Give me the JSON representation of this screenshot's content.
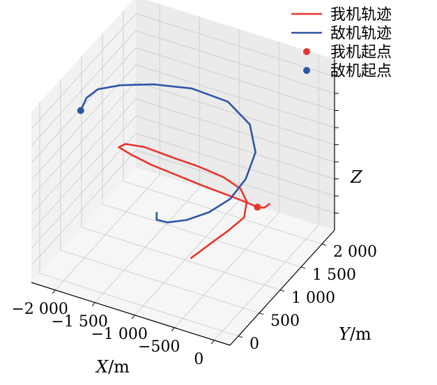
{
  "chart_data": {
    "type": "line",
    "projection": "3d",
    "title": "",
    "xlabel_var": "X",
    "xlabel_unit": "/m",
    "ylabel_var": "Y",
    "ylabel_unit": "/m",
    "zlabel": "Z",
    "x_ticks": [
      "−2 000",
      "−1 500",
      "−1 000",
      "−500",
      "0"
    ],
    "y_ticks": [
      "0",
      "500",
      "1 000",
      "1 500",
      "2 000"
    ],
    "z_ticks": [],
    "xlim": [
      -2300,
      200
    ],
    "ylim": [
      -200,
      2300
    ],
    "zlim": [
      0,
      1
    ],
    "grid": true,
    "legend_position": "top-right",
    "legend": [
      {
        "label": "我机轨迹",
        "kind": "line",
        "color": "#e8352e"
      },
      {
        "label": "敌机轨迹",
        "kind": "line",
        "color": "#2d55a8"
      },
      {
        "label": "我机起点",
        "kind": "point",
        "color": "#e8352e"
      },
      {
        "label": "敌机起点",
        "kind": "point",
        "color": "#2d55a8"
      }
    ],
    "series": [
      {
        "name": "我机轨迹",
        "color": "#e8352e",
        "x": [
          -200,
          -150,
          -80,
          -60,
          -120,
          -300,
          -600,
          -900,
          -1200,
          -1450,
          -1600,
          -1550,
          -1350,
          -1050,
          -750,
          -500,
          -300,
          -200,
          -160,
          -260,
          -380,
          -500
        ],
        "y": [
          1500,
          1320,
          1150,
          950,
          800,
          680,
          620,
          600,
          580,
          560,
          560,
          620,
          700,
          760,
          860,
          960,
          1000,
          960,
          820,
          620,
          420,
          200
        ],
        "z": [
          0.31,
          0.35,
          0.4,
          0.46,
          0.52,
          0.57,
          0.6,
          0.62,
          0.64,
          0.67,
          0.69,
          0.7,
          0.69,
          0.66,
          0.62,
          0.57,
          0.52,
          0.47,
          0.42,
          0.38,
          0.34,
          0.3
        ]
      },
      {
        "name": "敌机轨迹",
        "color": "#2d55a8",
        "x": [
          -2100,
          -2080,
          -2000,
          -1800,
          -1500,
          -1150,
          -800,
          -550,
          -400,
          -380,
          -430,
          -550,
          -700,
          -850,
          -950,
          -980
        ],
        "y": [
          600,
          700,
          820,
          980,
          1200,
          1450,
          1650,
          1700,
          1550,
          1280,
          1000,
          720,
          470,
          300,
          230,
          290
        ],
        "z": [
          0.82,
          0.87,
          0.9,
          0.91,
          0.9,
          0.86,
          0.78,
          0.67,
          0.57,
          0.49,
          0.44,
          0.42,
          0.42,
          0.43,
          0.45,
          0.47
        ]
      }
    ],
    "start_points": [
      {
        "name": "我机起点",
        "x": -60,
        "y": 950,
        "z": 0.46,
        "color": "#e8352e"
      },
      {
        "name": "敌机起点",
        "x": -2100,
        "y": 600,
        "z": 0.82,
        "color": "#2d55a8"
      }
    ]
  }
}
